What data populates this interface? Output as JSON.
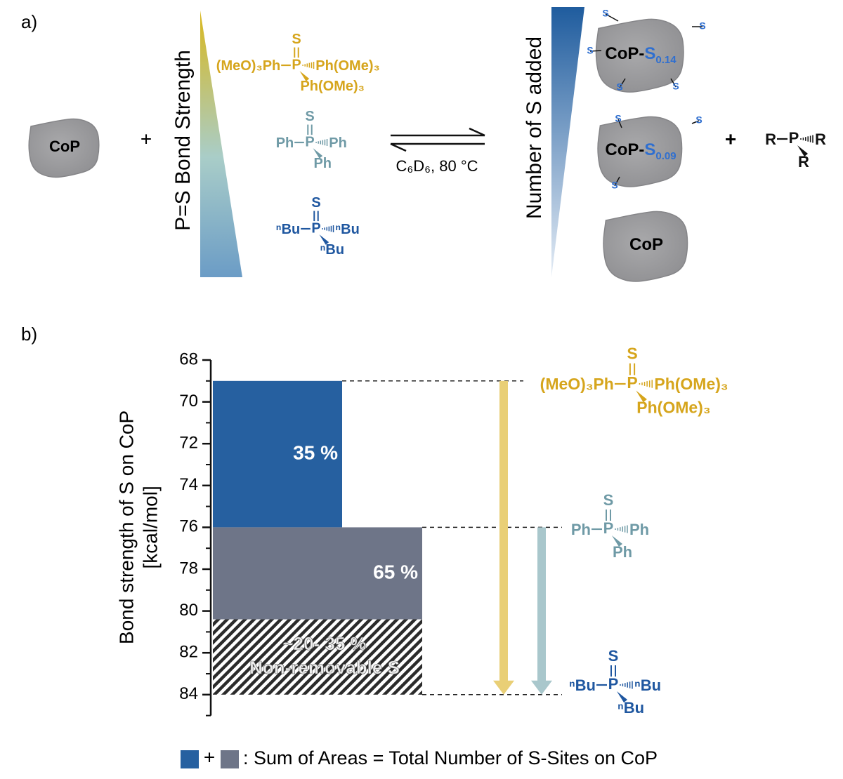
{
  "panel_a": {
    "label": "a)",
    "reactant": "CoP",
    "plus": "+",
    "gradient_label": "P=S Bond Strength",
    "conditions": "C₆D₆, 80 °C",
    "gradient2_label": "Number of S added",
    "products": [
      {
        "name": "CoP-",
        "s": "S",
        "sub": "0.14"
      },
      {
        "name": "CoP-",
        "s": "S",
        "sub": "0.09"
      },
      {
        "name": "CoP"
      }
    ],
    "surface_s": "S",
    "plus2": "+",
    "phosphine": {
      "p": "P",
      "left": "R",
      "right": "R",
      "bottom": "R",
      "color": "#111111"
    }
  },
  "molecules": [
    {
      "s": "S",
      "p": "P",
      "left": "(MeO)₃Ph",
      "right": "Ph(OMe)₃",
      "bottom": "Ph(OMe)₃",
      "color": "#d6a51c"
    },
    {
      "s": "S",
      "p": "P",
      "left": "Ph",
      "right": "Ph",
      "bottom": "Ph",
      "color": "#6f9aa6"
    },
    {
      "s": "S",
      "p": "P",
      "left": "ⁿBu",
      "right": "ⁿBu",
      "bottom": "ⁿBu",
      "color": "#1f57a0"
    }
  ],
  "chart_data": {
    "type": "bar",
    "panel_label": "b)",
    "y_label": [
      "Bond strength of S on CoP",
      "[kcal/mol]"
    ],
    "ylim": [
      68,
      85
    ],
    "inverted": true,
    "yticks": [
      68,
      70,
      72,
      74,
      76,
      78,
      80,
      82,
      84
    ],
    "minor_yticks": [
      69,
      71,
      73,
      75,
      77,
      79,
      81,
      83,
      85
    ],
    "bars": [
      {
        "start": 69,
        "end": 76,
        "label": "35 %",
        "color": "#2660a0"
      },
      {
        "start": 76,
        "end": 80.4,
        "label": "65 %",
        "color": "#6e7588"
      },
      {
        "start": 80.4,
        "end": 84,
        "label": [
          "~20- 35 %",
          "Non-removable S"
        ],
        "pattern": "hatch"
      }
    ],
    "guides": [
      69,
      76,
      84
    ],
    "arrows": [
      {
        "start": 69,
        "end": 84,
        "color": "#e9cf76"
      },
      {
        "start": 76,
        "end": 84,
        "color": "#a9c7cc"
      }
    ],
    "legend": {
      "plus": "+",
      "text": ": Sum of Areas = Total Number of S-Sites on CoP"
    }
  }
}
